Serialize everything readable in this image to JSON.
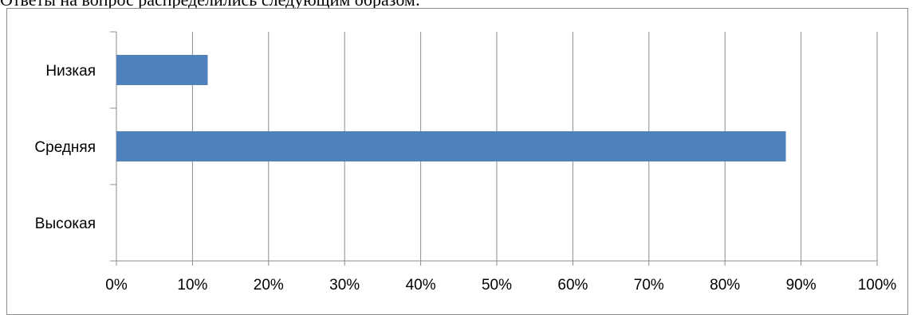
{
  "intro_text": "Ответы на вопрос распределились следующим образом:",
  "chart_data": {
    "type": "bar",
    "orientation": "horizontal",
    "categories": [
      "Низкая",
      "Средняя",
      "Высокая"
    ],
    "values": [
      12,
      88,
      0
    ],
    "value_unit": "%",
    "xlim": [
      0,
      100
    ],
    "x_ticks": [
      "0%",
      "10%",
      "20%",
      "30%",
      "40%",
      "50%",
      "60%",
      "70%",
      "80%",
      "90%",
      "100%"
    ],
    "grid": true,
    "legend": "none",
    "bar_color": "#4f81bd",
    "title": "",
    "xlabel": "",
    "ylabel": ""
  }
}
